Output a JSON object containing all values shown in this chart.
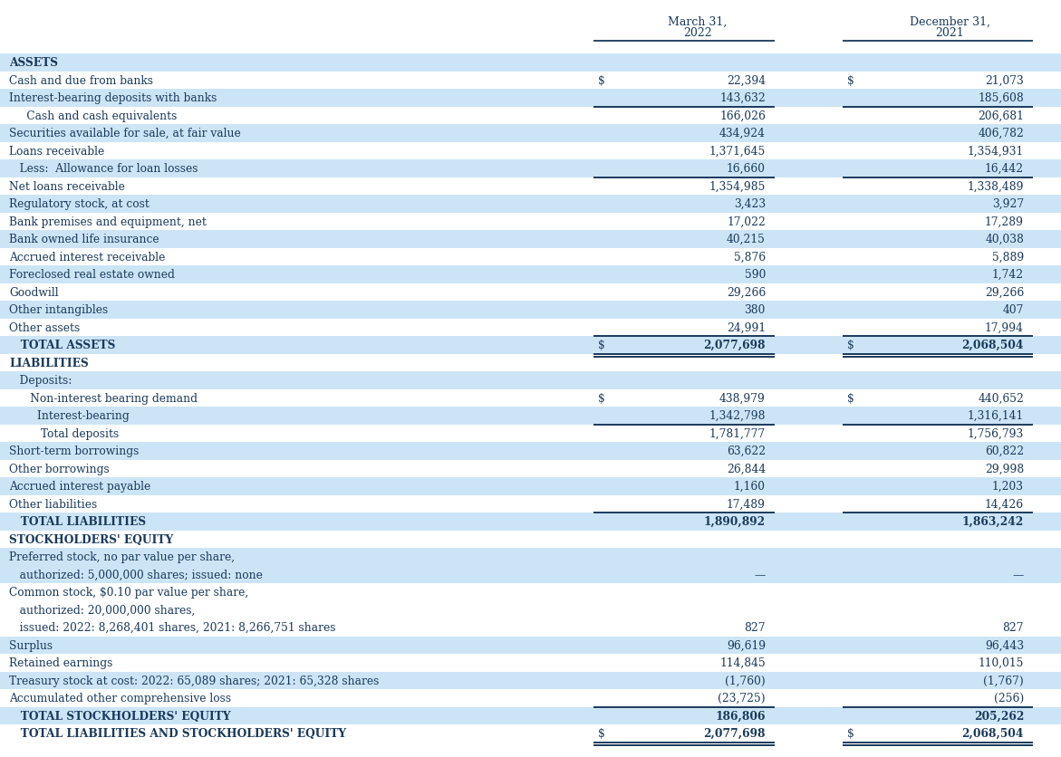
{
  "bg_light": "#cce5f6",
  "bg_white": "#ffffff",
  "text_color": "#1a3a5c",
  "rows": [
    {
      "label": "ASSETS",
      "v1": "",
      "v2": "",
      "style": "section_header",
      "indent": 0,
      "bg": "light",
      "line_below": false,
      "dollar1": false,
      "dollar2": false,
      "double_line": false,
      "multiline_lines": 1
    },
    {
      "label": "Cash and due from banks",
      "v1": "22,394",
      "v2": "21,073",
      "style": "normal",
      "indent": 0,
      "bg": "white",
      "line_below": false,
      "dollar1": true,
      "dollar2": true,
      "double_line": false,
      "multiline_lines": 1
    },
    {
      "label": "Interest-bearing deposits with banks",
      "v1": "143,632",
      "v2": "185,608",
      "style": "normal",
      "indent": 0,
      "bg": "light",
      "line_below": true,
      "dollar1": false,
      "dollar2": false,
      "double_line": false,
      "multiline_lines": 1
    },
    {
      "label": "     Cash and cash equivalents",
      "v1": "166,026",
      "v2": "206,681",
      "style": "normal",
      "indent": 0,
      "bg": "white",
      "line_below": false,
      "dollar1": false,
      "dollar2": false,
      "double_line": false,
      "multiline_lines": 1
    },
    {
      "label": "Securities available for sale, at fair value",
      "v1": "434,924",
      "v2": "406,782",
      "style": "normal",
      "indent": 0,
      "bg": "light",
      "line_below": false,
      "dollar1": false,
      "dollar2": false,
      "double_line": false,
      "multiline_lines": 1
    },
    {
      "label": "Loans receivable",
      "v1": "1,371,645",
      "v2": "1,354,931",
      "style": "normal",
      "indent": 0,
      "bg": "white",
      "line_below": false,
      "dollar1": false,
      "dollar2": false,
      "double_line": false,
      "multiline_lines": 1
    },
    {
      "label": "   Less:  Allowance for loan losses",
      "v1": "16,660",
      "v2": "16,442",
      "style": "normal",
      "indent": 0,
      "bg": "light",
      "line_below": true,
      "dollar1": false,
      "dollar2": false,
      "double_line": false,
      "multiline_lines": 1
    },
    {
      "label": "Net loans receivable",
      "v1": "1,354,985",
      "v2": "1,338,489",
      "style": "normal",
      "indent": 0,
      "bg": "white",
      "line_below": false,
      "dollar1": false,
      "dollar2": false,
      "double_line": false,
      "multiline_lines": 1
    },
    {
      "label": "Regulatory stock, at cost",
      "v1": "3,423",
      "v2": "3,927",
      "style": "normal",
      "indent": 0,
      "bg": "light",
      "line_below": false,
      "dollar1": false,
      "dollar2": false,
      "double_line": false,
      "multiline_lines": 1
    },
    {
      "label": "Bank premises and equipment, net",
      "v1": "17,022",
      "v2": "17,289",
      "style": "normal",
      "indent": 0,
      "bg": "white",
      "line_below": false,
      "dollar1": false,
      "dollar2": false,
      "double_line": false,
      "multiline_lines": 1
    },
    {
      "label": "Bank owned life insurance",
      "v1": "40,215",
      "v2": "40,038",
      "style": "normal",
      "indent": 0,
      "bg": "light",
      "line_below": false,
      "dollar1": false,
      "dollar2": false,
      "double_line": false,
      "multiline_lines": 1
    },
    {
      "label": "Accrued interest receivable",
      "v1": "5,876",
      "v2": "5,889",
      "style": "normal",
      "indent": 0,
      "bg": "white",
      "line_below": false,
      "dollar1": false,
      "dollar2": false,
      "double_line": false,
      "multiline_lines": 1
    },
    {
      "label": "Foreclosed real estate owned",
      "v1": "590",
      "v2": "1,742",
      "style": "normal",
      "indent": 0,
      "bg": "light",
      "line_below": false,
      "dollar1": false,
      "dollar2": false,
      "double_line": false,
      "multiline_lines": 1
    },
    {
      "label": "Goodwill",
      "v1": "29,266",
      "v2": "29,266",
      "style": "normal",
      "indent": 0,
      "bg": "white",
      "line_below": false,
      "dollar1": false,
      "dollar2": false,
      "double_line": false,
      "multiline_lines": 1
    },
    {
      "label": "Other intangibles",
      "v1": "380",
      "v2": "407",
      "style": "normal",
      "indent": 0,
      "bg": "light",
      "line_below": false,
      "dollar1": false,
      "dollar2": false,
      "double_line": false,
      "multiline_lines": 1
    },
    {
      "label": "Other assets",
      "v1": "24,991",
      "v2": "17,994",
      "style": "normal",
      "indent": 0,
      "bg": "white",
      "line_below": true,
      "dollar1": false,
      "dollar2": false,
      "double_line": false,
      "multiline_lines": 1
    },
    {
      "label": "   TOTAL ASSETS",
      "v1": "2,077,698",
      "v2": "2,068,504",
      "style": "total",
      "indent": 0,
      "bg": "light",
      "line_below": true,
      "dollar1": true,
      "dollar2": true,
      "double_line": true,
      "multiline_lines": 1
    },
    {
      "label": "LIABILITIES",
      "v1": "",
      "v2": "",
      "style": "section_header",
      "indent": 0,
      "bg": "white",
      "line_below": false,
      "dollar1": false,
      "dollar2": false,
      "double_line": false,
      "multiline_lines": 1
    },
    {
      "label": "   Deposits:",
      "v1": "",
      "v2": "",
      "style": "subsection",
      "indent": 0,
      "bg": "light",
      "line_below": false,
      "dollar1": false,
      "dollar2": false,
      "double_line": false,
      "multiline_lines": 1
    },
    {
      "label": "      Non-interest bearing demand",
      "v1": "438,979",
      "v2": "440,652",
      "style": "normal",
      "indent": 0,
      "bg": "white",
      "line_below": false,
      "dollar1": true,
      "dollar2": true,
      "double_line": false,
      "multiline_lines": 1
    },
    {
      "label": "        Interest-bearing",
      "v1": "1,342,798",
      "v2": "1,316,141",
      "style": "normal",
      "indent": 0,
      "bg": "light",
      "line_below": true,
      "dollar1": false,
      "dollar2": false,
      "double_line": false,
      "multiline_lines": 1
    },
    {
      "label": "         Total deposits",
      "v1": "1,781,777",
      "v2": "1,756,793",
      "style": "normal",
      "indent": 0,
      "bg": "white",
      "line_below": false,
      "dollar1": false,
      "dollar2": false,
      "double_line": false,
      "multiline_lines": 1
    },
    {
      "label": "Short-term borrowings",
      "v1": "63,622",
      "v2": "60,822",
      "style": "normal",
      "indent": 0,
      "bg": "light",
      "line_below": false,
      "dollar1": false,
      "dollar2": false,
      "double_line": false,
      "multiline_lines": 1
    },
    {
      "label": "Other borrowings",
      "v1": "26,844",
      "v2": "29,998",
      "style": "normal",
      "indent": 0,
      "bg": "white",
      "line_below": false,
      "dollar1": false,
      "dollar2": false,
      "double_line": false,
      "multiline_lines": 1
    },
    {
      "label": "Accrued interest payable",
      "v1": "1,160",
      "v2": "1,203",
      "style": "normal",
      "indent": 0,
      "bg": "light",
      "line_below": false,
      "dollar1": false,
      "dollar2": false,
      "double_line": false,
      "multiline_lines": 1
    },
    {
      "label": "Other liabilities",
      "v1": "17,489",
      "v2": "14,426",
      "style": "normal",
      "indent": 0,
      "bg": "white",
      "line_below": true,
      "dollar1": false,
      "dollar2": false,
      "double_line": false,
      "multiline_lines": 1
    },
    {
      "label": "   TOTAL LIABILITIES",
      "v1": "1,890,892",
      "v2": "1,863,242",
      "style": "total",
      "indent": 0,
      "bg": "light",
      "line_below": false,
      "dollar1": false,
      "dollar2": false,
      "double_line": false,
      "multiline_lines": 1
    },
    {
      "label": "STOCKHOLDERS' EQUITY",
      "v1": "",
      "v2": "",
      "style": "section_header",
      "indent": 0,
      "bg": "white",
      "line_below": false,
      "dollar1": false,
      "dollar2": false,
      "double_line": false,
      "multiline_lines": 1
    },
    {
      "label": "Preferred stock, no par value per share,",
      "v1": "",
      "v2": "",
      "style": "normal",
      "indent": 0,
      "bg": "light",
      "line_below": false,
      "dollar1": false,
      "dollar2": false,
      "double_line": false,
      "multiline_lines": 1
    },
    {
      "label": "   authorized: 5,000,000 shares; issued: none",
      "v1": "—",
      "v2": "—",
      "style": "normal",
      "indent": 0,
      "bg": "light",
      "line_below": false,
      "dollar1": false,
      "dollar2": false,
      "double_line": false,
      "multiline_lines": 1
    },
    {
      "label": "Common stock, $0.10 par value per share,",
      "v1": "",
      "v2": "",
      "style": "normal",
      "indent": 0,
      "bg": "white",
      "line_below": false,
      "dollar1": false,
      "dollar2": false,
      "double_line": false,
      "multiline_lines": 1
    },
    {
      "label": "   authorized: 20,000,000 shares,",
      "v1": "",
      "v2": "",
      "style": "normal",
      "indent": 0,
      "bg": "white",
      "line_below": false,
      "dollar1": false,
      "dollar2": false,
      "double_line": false,
      "multiline_lines": 1
    },
    {
      "label": "   issued: 2022: 8,268,401 shares, 2021: 8,266,751 shares",
      "v1": "827",
      "v2": "827",
      "style": "normal",
      "indent": 0,
      "bg": "white",
      "line_below": false,
      "dollar1": false,
      "dollar2": false,
      "double_line": false,
      "multiline_lines": 1
    },
    {
      "label": "Surplus",
      "v1": "96,619",
      "v2": "96,443",
      "style": "normal",
      "indent": 0,
      "bg": "light",
      "line_below": false,
      "dollar1": false,
      "dollar2": false,
      "double_line": false,
      "multiline_lines": 1
    },
    {
      "label": "Retained earnings",
      "v1": "114,845",
      "v2": "110,015",
      "style": "normal",
      "indent": 0,
      "bg": "white",
      "line_below": false,
      "dollar1": false,
      "dollar2": false,
      "double_line": false,
      "multiline_lines": 1
    },
    {
      "label": "Treasury stock at cost: 2022: 65,089 shares; 2021: 65,328 shares",
      "v1": "(1,760)",
      "v2": "(1,767)",
      "style": "normal",
      "indent": 0,
      "bg": "light",
      "line_below": false,
      "dollar1": false,
      "dollar2": false,
      "double_line": false,
      "multiline_lines": 1
    },
    {
      "label": "Accumulated other comprehensive loss",
      "v1": "(23,725)",
      "v2": "(256)",
      "style": "normal",
      "indent": 0,
      "bg": "white",
      "line_below": true,
      "dollar1": false,
      "dollar2": false,
      "double_line": false,
      "multiline_lines": 1
    },
    {
      "label": "   TOTAL STOCKHOLDERS' EQUITY",
      "v1": "186,806",
      "v2": "205,262",
      "style": "total",
      "indent": 0,
      "bg": "light",
      "line_below": false,
      "dollar1": false,
      "dollar2": false,
      "double_line": false,
      "multiline_lines": 1
    },
    {
      "label": "   TOTAL LIABILITIES AND STOCKHOLDERS' EQUITY",
      "v1": "2,077,698",
      "v2": "2,068,504",
      "style": "total",
      "indent": 0,
      "bg": "white",
      "line_below": true,
      "dollar1": true,
      "dollar2": true,
      "double_line": true,
      "multiline_lines": 1
    }
  ]
}
